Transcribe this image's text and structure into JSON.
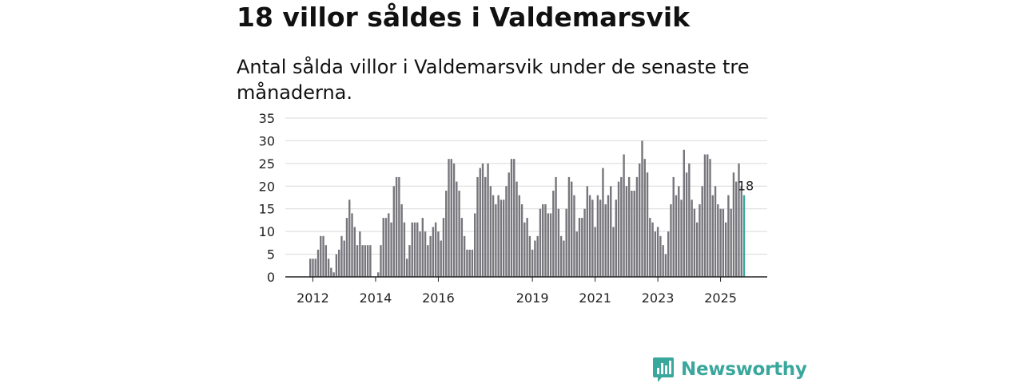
{
  "title": "18 villor såldes i Valdemarsvik",
  "subtitle": "Antal sålda villor i Valdemarsvik under de senaste tre månaderna.",
  "brand": {
    "name": "Newsworthy",
    "icon": "newsworthy-logo-icon"
  },
  "colors": {
    "bar": "#77767c",
    "highlight": "#3aa79c",
    "grid": "#d9d9d9",
    "axis": "#222222"
  },
  "chart_data": {
    "type": "bar",
    "title": "18 villor såldes i Valdemarsvik",
    "xlabel": "",
    "ylabel": "",
    "ylim": [
      0,
      35
    ],
    "yticks": [
      "0",
      "5",
      "10",
      "15",
      "20",
      "25",
      "30",
      "35"
    ],
    "xticks": [
      {
        "label": "2012",
        "index": 1
      },
      {
        "label": "2014",
        "index": 25
      },
      {
        "label": "2016",
        "index": 49
      },
      {
        "label": "2019",
        "index": 85
      },
      {
        "label": "2021",
        "index": 109
      },
      {
        "label": "2023",
        "index": 133
      },
      {
        "label": "2025",
        "index": 157
      }
    ],
    "start": "2011-12",
    "values": [
      4,
      4,
      4,
      6,
      9,
      9,
      7,
      4,
      2,
      1,
      5,
      6,
      9,
      8,
      13,
      17,
      14,
      11,
      7,
      10,
      7,
      7,
      7,
      7,
      0,
      0,
      1,
      7,
      13,
      13,
      14,
      12,
      20,
      22,
      22,
      16,
      12,
      4,
      7,
      12,
      12,
      12,
      10,
      13,
      10,
      7,
      9,
      11,
      12,
      10,
      8,
      13,
      19,
      26,
      26,
      25,
      21,
      19,
      13,
      9,
      6,
      6,
      6,
      14,
      22,
      24,
      25,
      22,
      25,
      20,
      18,
      16,
      18,
      17,
      17,
      20,
      23,
      26,
      26,
      21,
      18,
      16,
      12,
      13,
      9,
      6,
      8,
      9,
      15,
      16,
      16,
      14,
      14,
      19,
      22,
      15,
      9,
      8,
      15,
      22,
      21,
      18,
      10,
      13,
      13,
      15,
      20,
      18,
      17,
      11,
      18,
      17,
      24,
      16,
      18,
      20,
      11,
      17,
      21,
      22,
      27,
      20,
      22,
      19,
      19,
      22,
      25,
      30,
      26,
      23,
      13,
      12,
      10,
      11,
      9,
      7,
      5,
      10,
      16,
      22,
      18,
      20,
      17,
      28,
      23,
      25,
      17,
      15,
      12,
      16,
      20,
      27,
      27,
      26,
      18,
      20,
      16,
      15,
      15,
      12,
      18,
      15,
      23,
      21,
      25,
      20,
      18
    ],
    "highlight_index": 166,
    "highlight_label": "18"
  }
}
